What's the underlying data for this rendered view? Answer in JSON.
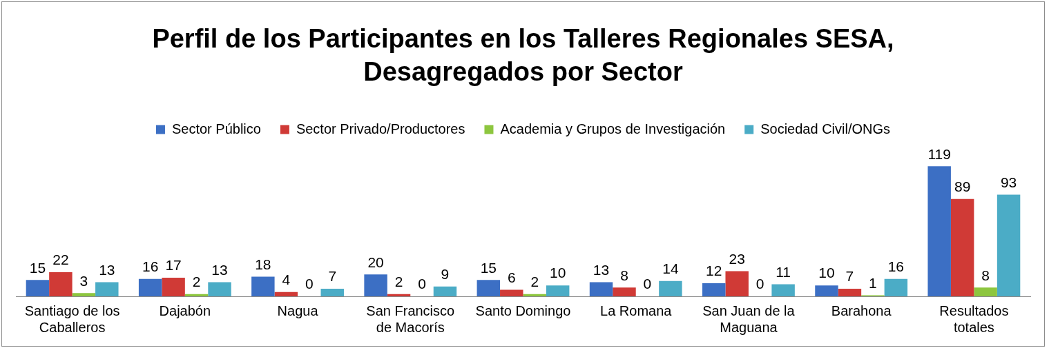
{
  "chart_data": {
    "type": "bar",
    "title": "Perfil de los Participantes en los Talleres Regionales SESA, Desagregados por Sector",
    "categories": [
      "Santiago de los Caballeros",
      "Dajabón",
      "Nagua",
      "San Francisco de Macorís",
      "Santo Domingo",
      "La Romana",
      "San Juan de la Maguana",
      "Barahona",
      "Resultados totales"
    ],
    "series": [
      {
        "name": "Sector Público",
        "color": "#3c6fc4",
        "values": [
          15,
          16,
          18,
          20,
          15,
          13,
          12,
          10,
          119
        ]
      },
      {
        "name": "Sector Privado/Productores",
        "color": "#d03a36",
        "values": [
          22,
          17,
          4,
          2,
          6,
          8,
          23,
          7,
          89
        ]
      },
      {
        "name": "Academia y Grupos de Investigación",
        "color": "#8dc63f",
        "values": [
          3,
          2,
          0,
          0,
          2,
          0,
          0,
          1,
          8
        ]
      },
      {
        "name": "Sociedad Civil/ONGs",
        "color": "#4bacc6",
        "values": [
          13,
          13,
          7,
          9,
          10,
          14,
          11,
          16,
          93
        ]
      }
    ],
    "data_labels": true,
    "legend": "top",
    "grid": false
  }
}
